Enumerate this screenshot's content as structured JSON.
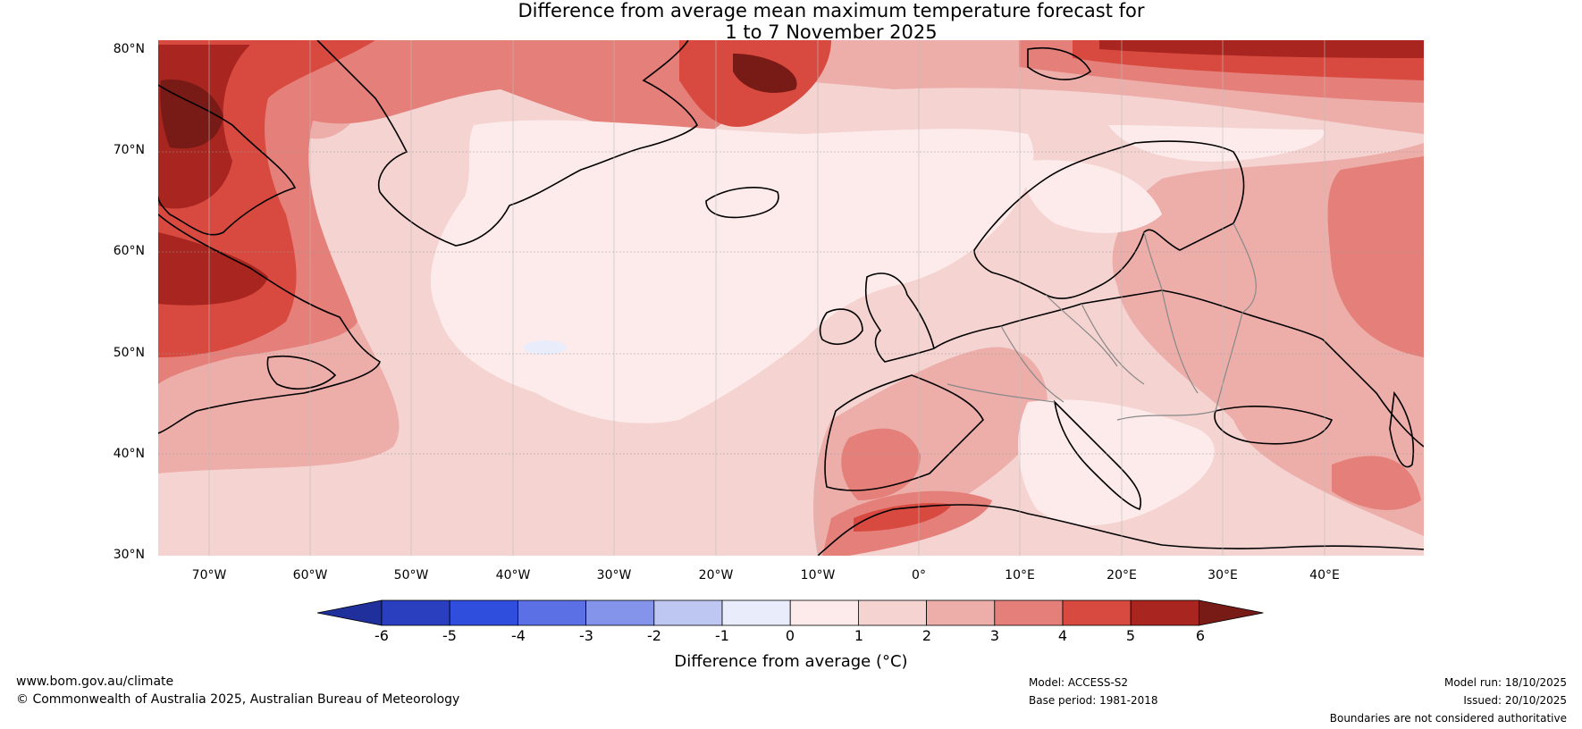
{
  "title": {
    "line1": "Difference from average mean maximum temperature forecast for",
    "line2": "1 to 7 November 2025"
  },
  "map": {
    "latitude_labels": [
      "80°N",
      "70°N",
      "60°N",
      "50°N",
      "40°N",
      "30°N"
    ],
    "longitude_labels": [
      "70°W",
      "60°W",
      "50°W",
      "40°W",
      "30°W",
      "20°W",
      "10°W",
      "0°",
      "10°E",
      "20°E",
      "30°E",
      "40°E"
    ]
  },
  "colorbar": {
    "ticks": [
      "-6",
      "-5",
      "-4",
      "-3",
      "-2",
      "-1",
      "0",
      "1",
      "2",
      "3",
      "4",
      "5",
      "6"
    ],
    "colors": [
      "#1f2f9c",
      "#2a3fbf",
      "#2f4ede",
      "#5b70e4",
      "#8394ea",
      "#bec6f2",
      "#e8ecfb",
      "#fcebea",
      "#f4d3d1",
      "#edaeaa",
      "#e47f79",
      "#d84a40",
      "#a82520",
      "#781a16"
    ],
    "label": "Difference from average (°C)"
  },
  "footer": {
    "website": "www.bom.gov.au/climate",
    "copyright": "© Commonwealth of Australia 2025, Australian Bureau of Meteorology",
    "model": "Model: ACCESS-S2",
    "base_period": "Base period: 1981-2018",
    "model_run": "Model run: 18/10/2025",
    "issued": "Issued: 20/10/2025",
    "disclaimer": "Boundaries are not considered authoritative"
  }
}
